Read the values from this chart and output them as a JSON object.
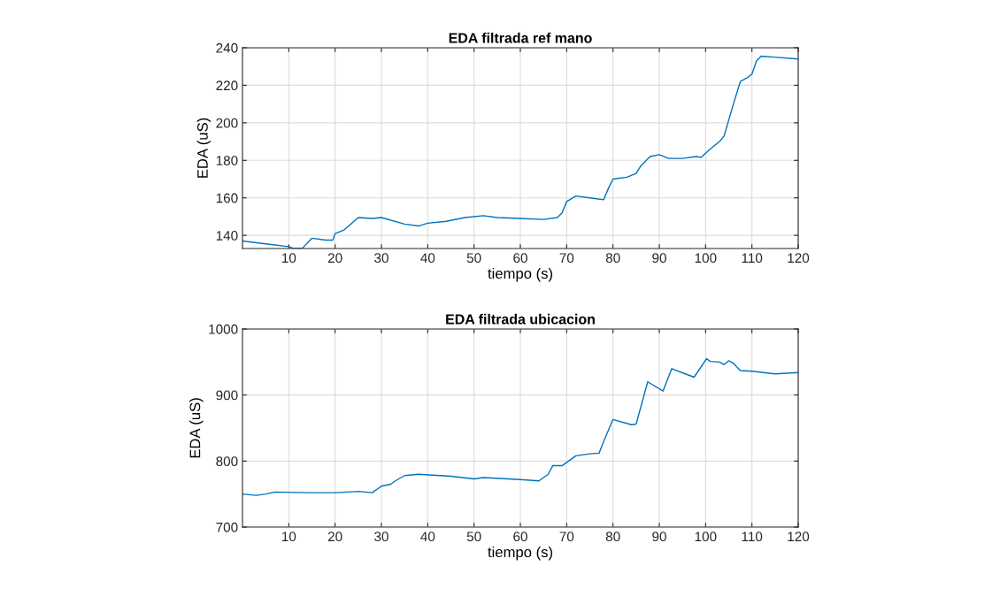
{
  "chart_data": [
    {
      "type": "line",
      "title": "EDA filtrada ref mano",
      "xlabel": "tiempo (s)",
      "ylabel": "EDA (uS)",
      "x": [
        0,
        5,
        10,
        11,
        13,
        15,
        18,
        19.5,
        20,
        22,
        25,
        28,
        30,
        35,
        38,
        40,
        44,
        48,
        52,
        55,
        60,
        65,
        68,
        69,
        70,
        72,
        75,
        78,
        79,
        80,
        83,
        85,
        86,
        88,
        90,
        92,
        95,
        98,
        99,
        101,
        103,
        104,
        106,
        107.5,
        109,
        110,
        111,
        112,
        115,
        120
      ],
      "series": [
        {
          "color": "#0072bd",
          "values": [
            137,
            135.5,
            134,
            133,
            133.3,
            138.5,
            137.5,
            137.5,
            141,
            143,
            149.5,
            149,
            149.5,
            146,
            145,
            146.5,
            147.5,
            149.5,
            150.5,
            149.5,
            149,
            148.5,
            149.5,
            152,
            158,
            161,
            160,
            159,
            165,
            170,
            171,
            173,
            177,
            182,
            183,
            181,
            181,
            182,
            181.5,
            186,
            190,
            193,
            210,
            222,
            224,
            226,
            233,
            235.5,
            235,
            234
          ]
        }
      ],
      "xlim": [
        0,
        120
      ],
      "xticks": [
        10,
        20,
        30,
        40,
        50,
        60,
        70,
        80,
        90,
        100,
        110,
        120
      ],
      "ylim": [
        133,
        240
      ],
      "yticks": [
        140,
        160,
        180,
        200,
        220,
        240
      ],
      "grid": true,
      "line_style": "solid",
      "marker": "none"
    },
    {
      "type": "line",
      "title": "EDA filtrada ubicacion",
      "xlabel": "tiempo (s)",
      "ylabel": "EDA (uS)",
      "x": [
        0,
        3,
        5,
        7,
        15,
        20,
        25,
        28,
        30,
        32,
        33,
        35,
        38,
        45,
        50,
        52,
        60,
        64,
        66,
        67,
        69,
        72,
        75,
        77,
        78,
        80,
        84,
        85,
        87.5,
        90.8,
        92.7,
        97.5,
        98,
        100.2,
        101,
        103,
        104,
        105,
        106,
        107.5,
        110,
        115,
        120
      ],
      "series": [
        {
          "color": "#0072bd",
          "values": [
            750,
            748,
            750,
            753,
            752,
            752,
            754,
            752,
            762,
            765,
            770,
            778,
            780,
            777,
            773,
            775,
            772,
            770,
            780,
            793,
            793,
            808,
            811,
            812,
            830,
            863,
            855,
            856,
            920,
            906,
            940,
            927,
            932,
            955,
            951,
            950,
            946,
            952,
            948,
            937,
            936,
            932,
            934
          ]
        }
      ],
      "xlim": [
        0,
        120
      ],
      "xticks": [
        10,
        20,
        30,
        40,
        50,
        60,
        70,
        80,
        90,
        100,
        110,
        120
      ],
      "ylim": [
        700,
        1000
      ],
      "yticks": [
        700,
        800,
        900,
        1000
      ],
      "grid": true,
      "line_style": "solid",
      "marker": "none"
    }
  ]
}
